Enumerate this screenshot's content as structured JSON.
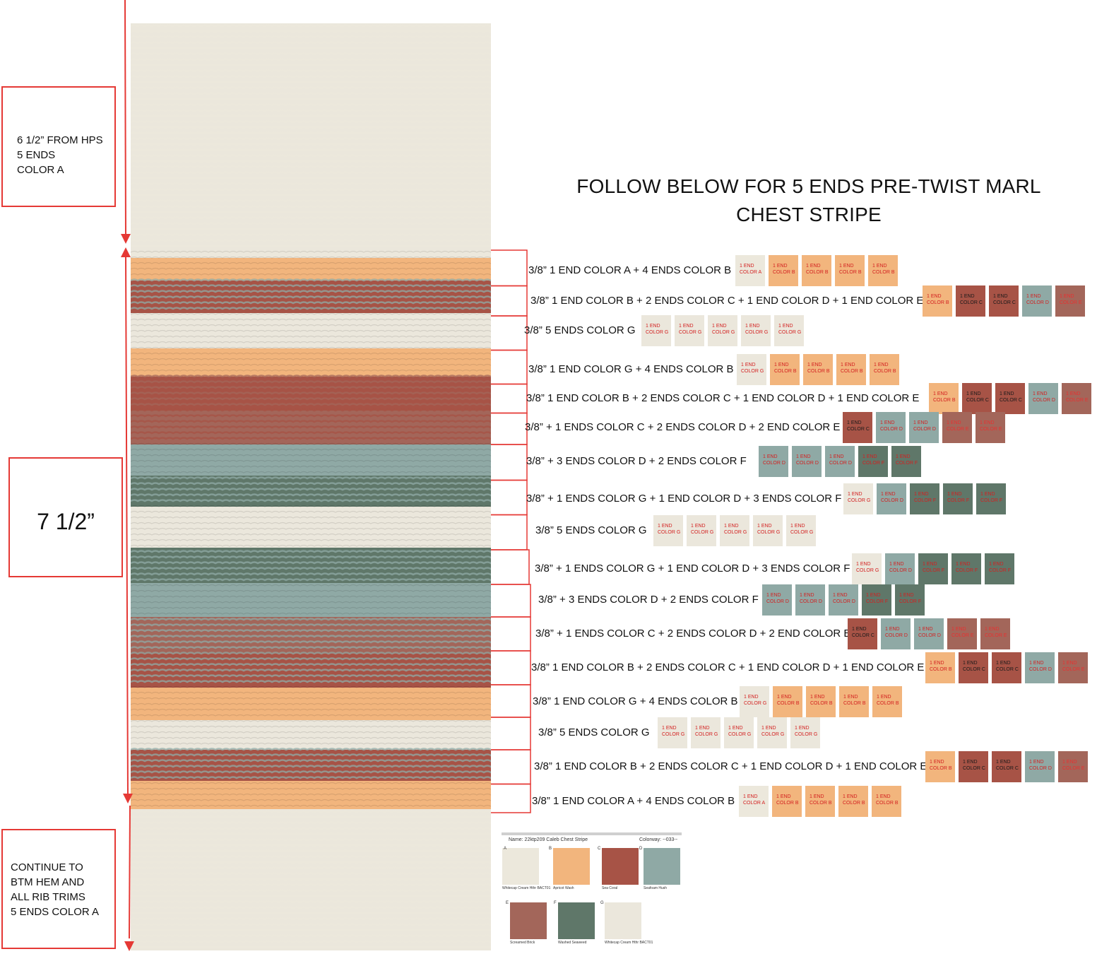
{
  "title_line1": "FOLLOW BELOW FOR 5 ENDS PRE-TWIST MARL",
  "title_line2": "CHEST STRIPE",
  "top_note": "6 1/2” FROM HPS\n5 ENDS\nCOLOR A",
  "middle_note": "7 1/2”",
  "bottom_note": "CONTINUE TO\nBTM HEM AND\nALL RIB TRIMS\n5 ENDS COLOR A",
  "colors": {
    "A": "#ece8dc",
    "B": "#f2b57d",
    "C": "#a75346",
    "D": "#8fa9a5",
    "E": "#a3665a",
    "F": "#5f7769",
    "G": "#ebe7dc",
    "arrow": "#e53935"
  },
  "stripe_rows": [
    {
      "label": "3/8” 1 END COLOR A + 4 ENDS COLOR B",
      "swatches": [
        "A",
        "B",
        "B",
        "B",
        "B"
      ]
    },
    {
      "label": "3/8” 1 END COLOR B + 2 ENDS COLOR C + 1 END COLOR D + 1 END COLOR E",
      "swatches": [
        "B",
        "C",
        "C",
        "D",
        "E"
      ]
    },
    {
      "label": "3/8”  5 ENDS COLOR G",
      "swatches": [
        "G",
        "G",
        "G",
        "G",
        "G"
      ]
    },
    {
      "label": "3/8” 1 END COLOR G + 4 ENDS COLOR B",
      "swatches": [
        "G",
        "B",
        "B",
        "B",
        "B"
      ]
    },
    {
      "label": "3/8” 1 END COLOR B + 2 ENDS COLOR C + 1 END COLOR D + 1 END COLOR E",
      "swatches": [
        "B",
        "C",
        "C",
        "D",
        "E"
      ]
    },
    {
      "label": "3/8” + 1 ENDS COLOR C + 2 ENDS COLOR D + 2 END COLOR E",
      "swatches": [
        "C",
        "D",
        "D",
        "E",
        "E"
      ]
    },
    {
      "label": "3/8” + 3 ENDS COLOR D + 2 ENDS COLOR F",
      "swatches": [
        "D",
        "D",
        "D",
        "F",
        "F"
      ]
    },
    {
      "label": "3/8” + 1 ENDS COLOR G + 1 END COLOR D + 3 ENDS COLOR F",
      "swatches": [
        "G",
        "D",
        "F",
        "F",
        "F"
      ]
    },
    {
      "label": "3/8”  5 ENDS COLOR G",
      "swatches": [
        "G",
        "G",
        "G",
        "G",
        "G"
      ]
    },
    {
      "label": "3/8” + 1 ENDS COLOR G + 1 END COLOR D + 3 ENDS COLOR F",
      "swatches": [
        "G",
        "D",
        "F",
        "F",
        "F"
      ]
    },
    {
      "label": "3/8” + 3 ENDS COLOR D + 2 ENDS COLOR F",
      "swatches": [
        "D",
        "D",
        "D",
        "F",
        "F"
      ]
    },
    {
      "label": "3/8” + 1 ENDS COLOR C + 2 ENDS COLOR D + 2 END COLOR E",
      "swatches": [
        "C",
        "D",
        "D",
        "E",
        "E"
      ]
    },
    {
      "label": "3/8” 1 END COLOR B + 2 ENDS COLOR C + 1 END COLOR D + 1 END COLOR E",
      "swatches": [
        "B",
        "C",
        "C",
        "D",
        "E"
      ]
    },
    {
      "label": "3/8” 1 END COLOR G + 4 ENDS COLOR B",
      "swatches": [
        "G",
        "B",
        "B",
        "B",
        "B"
      ]
    },
    {
      "label": "3/8”  5 ENDS COLOR G",
      "swatches": [
        "G",
        "G",
        "G",
        "G",
        "G"
      ]
    },
    {
      "label": "3/8” 1 END COLOR B + 2 ENDS COLOR C + 1 END COLOR D + 1 END COLOR E",
      "swatches": [
        "B",
        "C",
        "C",
        "D",
        "E"
      ]
    },
    {
      "label": "3/8” 1 END COLOR A + 4 ENDS COLOR B",
      "swatches": [
        "A",
        "B",
        "B",
        "B",
        "B"
      ]
    }
  ],
  "swatch_line1": "1 END",
  "swatch_line2_prefix": "COLOR ",
  "color_card": {
    "name": "Name: 22ktp209 Caleb Chest Stripe",
    "colorway": "Colorway: --033--",
    "entries": [
      {
        "letter": "A",
        "name": "Whitecap Cream Hthr BACT01",
        "color_key": "A"
      },
      {
        "letter": "B",
        "name": "Apricot Wash",
        "color_key": "B"
      },
      {
        "letter": "C",
        "name": "Sea Coral",
        "color_key": "C"
      },
      {
        "letter": "D",
        "name": "Seafoam Hush",
        "color_key": "D"
      },
      {
        "letter": "E",
        "name": "Screamed Brick",
        "color_key": "E"
      },
      {
        "letter": "F",
        "name": "Washed Seaweed",
        "color_key": "F"
      },
      {
        "letter": "G",
        "name": "Whitecap Cream Hthr BACT01",
        "color_key": "G"
      }
    ]
  }
}
